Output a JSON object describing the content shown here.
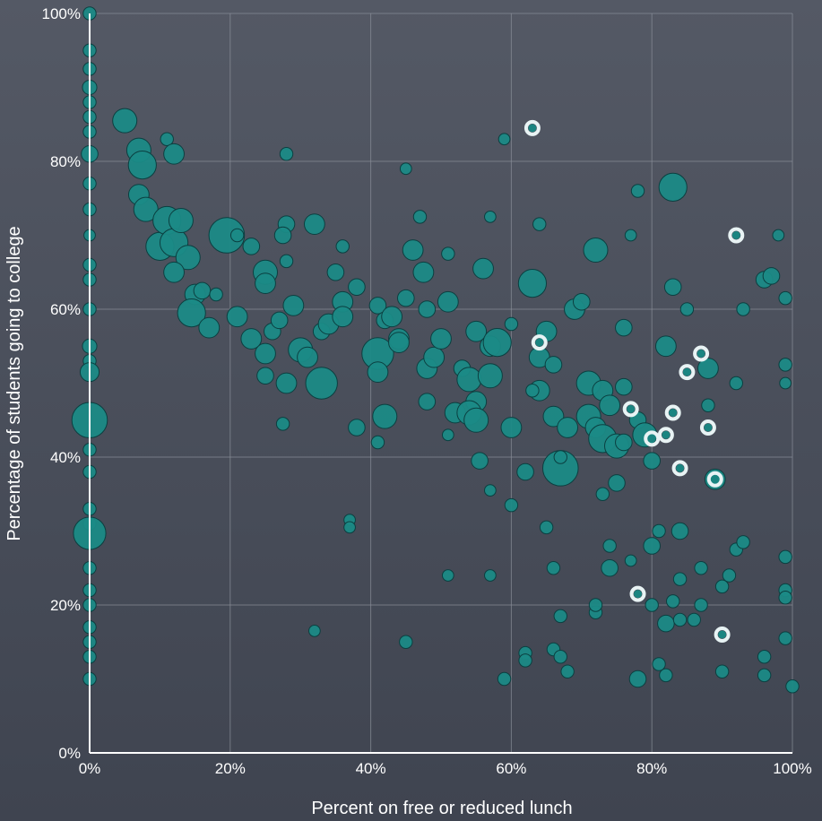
{
  "chart_data": {
    "type": "scatter",
    "title": "",
    "xlabel": "Percent on free or reduced lunch",
    "ylabel": "Percentage of students going to college",
    "xlim": [
      0,
      100
    ],
    "ylim": [
      0,
      100
    ],
    "x_ticks": [
      "0%",
      "20%",
      "40%",
      "60%",
      "80%",
      "100%"
    ],
    "y_ticks": [
      "0%",
      "20%",
      "40%",
      "60%",
      "80%",
      "100%"
    ],
    "grid": true,
    "bubble_color": "#1b8a86",
    "highlight_color": "#e8f3f4",
    "points": [
      {
        "x": 0,
        "y": 100,
        "s": 1
      },
      {
        "x": 0,
        "y": 95,
        "s": 1
      },
      {
        "x": 0,
        "y": 92.5,
        "s": 1
      },
      {
        "x": 0,
        "y": 90,
        "s": 1.2
      },
      {
        "x": 0,
        "y": 88,
        "s": 1
      },
      {
        "x": 0,
        "y": 86,
        "s": 1
      },
      {
        "x": 0,
        "y": 84,
        "s": 1
      },
      {
        "x": 0,
        "y": 81,
        "s": 1.5
      },
      {
        "x": 0,
        "y": 77,
        "s": 1
      },
      {
        "x": 0,
        "y": 73.5,
        "s": 1
      },
      {
        "x": 0,
        "y": 70,
        "s": 0.8
      },
      {
        "x": 0,
        "y": 66,
        "s": 1
      },
      {
        "x": 0,
        "y": 64,
        "s": 1
      },
      {
        "x": 0,
        "y": 60,
        "s": 1
      },
      {
        "x": 0,
        "y": 55,
        "s": 1.2
      },
      {
        "x": 0,
        "y": 53,
        "s": 1
      },
      {
        "x": 0,
        "y": 51.5,
        "s": 1.8
      },
      {
        "x": 0,
        "y": 45,
        "s": 4
      },
      {
        "x": 0,
        "y": 41,
        "s": 1
      },
      {
        "x": 0,
        "y": 38,
        "s": 1
      },
      {
        "x": 0,
        "y": 33,
        "s": 1
      },
      {
        "x": 0,
        "y": 31,
        "s": 1
      },
      {
        "x": 0,
        "y": 29.7,
        "s": 3.6
      },
      {
        "x": 0,
        "y": 25,
        "s": 1
      },
      {
        "x": 0,
        "y": 22,
        "s": 1
      },
      {
        "x": 0,
        "y": 20,
        "s": 1
      },
      {
        "x": 0,
        "y": 17,
        "s": 1
      },
      {
        "x": 0,
        "y": 15,
        "s": 1
      },
      {
        "x": 0,
        "y": 13,
        "s": 1
      },
      {
        "x": 0,
        "y": 10,
        "s": 1
      },
      {
        "x": 5,
        "y": 85.5,
        "s": 2.5
      },
      {
        "x": 7,
        "y": 81.5,
        "s": 2.5
      },
      {
        "x": 7.5,
        "y": 79.5,
        "s": 3
      },
      {
        "x": 7,
        "y": 75.5,
        "s": 2
      },
      {
        "x": 8,
        "y": 73.5,
        "s": 2.5
      },
      {
        "x": 11,
        "y": 83,
        "s": 1
      },
      {
        "x": 12,
        "y": 81,
        "s": 2
      },
      {
        "x": 10,
        "y": 68.5,
        "s": 3
      },
      {
        "x": 11,
        "y": 72,
        "s": 3
      },
      {
        "x": 12,
        "y": 69,
        "s": 3
      },
      {
        "x": 13,
        "y": 72,
        "s": 2.5
      },
      {
        "x": 14,
        "y": 67,
        "s": 2.5
      },
      {
        "x": 12,
        "y": 65,
        "s": 2
      },
      {
        "x": 15,
        "y": 62,
        "s": 2
      },
      {
        "x": 14.5,
        "y": 59.5,
        "s": 3
      },
      {
        "x": 16,
        "y": 62.5,
        "s": 1.5
      },
      {
        "x": 17,
        "y": 57.5,
        "s": 2
      },
      {
        "x": 18,
        "y": 62,
        "s": 1
      },
      {
        "x": 19.5,
        "y": 70,
        "s": 4
      },
      {
        "x": 23,
        "y": 68.5,
        "s": 1.5
      },
      {
        "x": 21,
        "y": 70,
        "s": 1
      },
      {
        "x": 21,
        "y": 59,
        "s": 2
      },
      {
        "x": 23,
        "y": 56,
        "s": 2
      },
      {
        "x": 25,
        "y": 65,
        "s": 2.5
      },
      {
        "x": 25,
        "y": 63.5,
        "s": 2
      },
      {
        "x": 26,
        "y": 57,
        "s": 1.5
      },
      {
        "x": 25,
        "y": 54,
        "s": 2
      },
      {
        "x": 27,
        "y": 58.5,
        "s": 1.5
      },
      {
        "x": 28,
        "y": 71.5,
        "s": 1.5
      },
      {
        "x": 27.5,
        "y": 70,
        "s": 1.5
      },
      {
        "x": 29,
        "y": 60.5,
        "s": 2
      },
      {
        "x": 30,
        "y": 54.5,
        "s": 2.5
      },
      {
        "x": 31,
        "y": 53.5,
        "s": 2
      },
      {
        "x": 32,
        "y": 71.5,
        "s": 2
      },
      {
        "x": 33,
        "y": 57,
        "s": 1.5
      },
      {
        "x": 34,
        "y": 58,
        "s": 2
      },
      {
        "x": 33,
        "y": 50,
        "s": 3.5
      },
      {
        "x": 35,
        "y": 65,
        "s": 1.5
      },
      {
        "x": 36,
        "y": 61,
        "s": 2
      },
      {
        "x": 36,
        "y": 59,
        "s": 2
      },
      {
        "x": 38,
        "y": 63,
        "s": 1.5
      },
      {
        "x": 36,
        "y": 68.5,
        "s": 1
      },
      {
        "x": 28,
        "y": 50,
        "s": 2
      },
      {
        "x": 27.5,
        "y": 44.5,
        "s": 1
      },
      {
        "x": 25,
        "y": 51,
        "s": 1.5
      },
      {
        "x": 28,
        "y": 81,
        "s": 1
      },
      {
        "x": 28,
        "y": 66.5,
        "s": 1
      },
      {
        "x": 32,
        "y": 16.5,
        "s": 0.8
      },
      {
        "x": 37,
        "y": 31.5,
        "s": 0.8
      },
      {
        "x": 37,
        "y": 30.5,
        "s": 0.8
      },
      {
        "x": 38,
        "y": 44,
        "s": 1.5
      },
      {
        "x": 41,
        "y": 54,
        "s": 3.5
      },
      {
        "x": 41,
        "y": 51.5,
        "s": 2
      },
      {
        "x": 42,
        "y": 45.5,
        "s": 2.5
      },
      {
        "x": 41,
        "y": 60.5,
        "s": 1.5
      },
      {
        "x": 42,
        "y": 58.5,
        "s": 1.5
      },
      {
        "x": 44,
        "y": 56,
        "s": 2
      },
      {
        "x": 44,
        "y": 55.5,
        "s": 2
      },
      {
        "x": 43,
        "y": 59,
        "s": 2
      },
      {
        "x": 45,
        "y": 61.5,
        "s": 1.5
      },
      {
        "x": 46,
        "y": 68,
        "s": 2
      },
      {
        "x": 47.5,
        "y": 65,
        "s": 2
      },
      {
        "x": 48,
        "y": 60,
        "s": 1.5
      },
      {
        "x": 48,
        "y": 52,
        "s": 2
      },
      {
        "x": 48,
        "y": 47.5,
        "s": 1.5
      },
      {
        "x": 49,
        "y": 53.5,
        "s": 2
      },
      {
        "x": 50,
        "y": 56,
        "s": 2
      },
      {
        "x": 51,
        "y": 61,
        "s": 2
      },
      {
        "x": 51,
        "y": 67.5,
        "s": 1
      },
      {
        "x": 45,
        "y": 79,
        "s": 0.8
      },
      {
        "x": 47,
        "y": 72.5,
        "s": 1
      },
      {
        "x": 41,
        "y": 42,
        "s": 1
      },
      {
        "x": 45,
        "y": 15,
        "s": 1
      },
      {
        "x": 51,
        "y": 24,
        "s": 0.8
      },
      {
        "x": 51,
        "y": 43,
        "s": 0.8
      },
      {
        "x": 52,
        "y": 46,
        "s": 2
      },
      {
        "x": 53,
        "y": 52,
        "s": 1.5
      },
      {
        "x": 54,
        "y": 50.5,
        "s": 2.5
      },
      {
        "x": 55,
        "y": 47.5,
        "s": 2
      },
      {
        "x": 54,
        "y": 46,
        "s": 2.5
      },
      {
        "x": 55,
        "y": 45,
        "s": 2.5
      },
      {
        "x": 55,
        "y": 57,
        "s": 2
      },
      {
        "x": 56,
        "y": 65.5,
        "s": 2
      },
      {
        "x": 57,
        "y": 72.5,
        "s": 0.8
      },
      {
        "x": 57,
        "y": 55,
        "s": 2
      },
      {
        "x": 58,
        "y": 55.5,
        "s": 3
      },
      {
        "x": 57,
        "y": 51,
        "s": 2.5
      },
      {
        "x": 55.5,
        "y": 39.5,
        "s": 1.5
      },
      {
        "x": 57,
        "y": 35.5,
        "s": 0.8
      },
      {
        "x": 57,
        "y": 24,
        "s": 0.8
      },
      {
        "x": 59,
        "y": 83,
        "s": 0.8
      },
      {
        "x": 60,
        "y": 44,
        "s": 2
      },
      {
        "x": 59,
        "y": 10,
        "s": 1
      },
      {
        "x": 60,
        "y": 33.5,
        "s": 1
      },
      {
        "x": 62,
        "y": 38,
        "s": 1.5
      },
      {
        "x": 62,
        "y": 13.5,
        "s": 1
      },
      {
        "x": 62,
        "y": 12.5,
        "s": 1
      },
      {
        "x": 63,
        "y": 63.5,
        "s": 3
      },
      {
        "x": 64,
        "y": 71.5,
        "s": 1
      },
      {
        "x": 64,
        "y": 53.5,
        "s": 2
      },
      {
        "x": 64,
        "y": 49,
        "s": 2
      },
      {
        "x": 65,
        "y": 57,
        "s": 2
      },
      {
        "x": 66,
        "y": 52.5,
        "s": 1.5
      },
      {
        "x": 66,
        "y": 45.5,
        "s": 2
      },
      {
        "x": 67,
        "y": 38.5,
        "s": 4
      },
      {
        "x": 66,
        "y": 14,
        "s": 1
      },
      {
        "x": 67,
        "y": 13,
        "s": 1
      },
      {
        "x": 68,
        "y": 11,
        "s": 1
      },
      {
        "x": 67,
        "y": 18.5,
        "s": 1
      },
      {
        "x": 68,
        "y": 44,
        "s": 2
      },
      {
        "x": 69,
        "y": 60,
        "s": 2
      },
      {
        "x": 70,
        "y": 61,
        "s": 1.5
      },
      {
        "x": 71,
        "y": 50,
        "s": 2.5
      },
      {
        "x": 71,
        "y": 45.5,
        "s": 2.5
      },
      {
        "x": 72,
        "y": 68,
        "s": 2.5
      },
      {
        "x": 72,
        "y": 44,
        "s": 2
      },
      {
        "x": 73,
        "y": 49,
        "s": 2
      },
      {
        "x": 73,
        "y": 42.5,
        "s": 3
      },
      {
        "x": 74,
        "y": 47,
        "s": 2
      },
      {
        "x": 74,
        "y": 25,
        "s": 1.5
      },
      {
        "x": 74,
        "y": 28,
        "s": 1
      },
      {
        "x": 75,
        "y": 36.5,
        "s": 1.5
      },
      {
        "x": 75,
        "y": 41.5,
        "s": 2.5
      },
      {
        "x": 76,
        "y": 57.5,
        "s": 1.5
      },
      {
        "x": 76,
        "y": 49.5,
        "s": 1.5
      },
      {
        "x": 77,
        "y": 70,
        "s": 0.8
      },
      {
        "x": 78,
        "y": 76,
        "s": 1
      },
      {
        "x": 78,
        "y": 45,
        "s": 1.5
      },
      {
        "x": 79,
        "y": 43,
        "s": 2.5
      },
      {
        "x": 80,
        "y": 39.5,
        "s": 1.5
      },
      {
        "x": 80,
        "y": 28,
        "s": 1.5
      },
      {
        "x": 81,
        "y": 30,
        "s": 1
      },
      {
        "x": 82,
        "y": 55,
        "s": 2
      },
      {
        "x": 82,
        "y": 17.5,
        "s": 1.5
      },
      {
        "x": 82,
        "y": 10.5,
        "s": 1
      },
      {
        "x": 83,
        "y": 76.5,
        "s": 3
      },
      {
        "x": 83,
        "y": 63,
        "s": 1.5
      },
      {
        "x": 83,
        "y": 20.5,
        "s": 1
      },
      {
        "x": 84,
        "y": 30,
        "s": 1.5
      },
      {
        "x": 84,
        "y": 18,
        "s": 1
      },
      {
        "x": 84,
        "y": 23.5,
        "s": 1
      },
      {
        "x": 85,
        "y": 60,
        "s": 1
      },
      {
        "x": 86,
        "y": 18,
        "s": 1
      },
      {
        "x": 87,
        "y": 25,
        "s": 1
      },
      {
        "x": 87,
        "y": 20,
        "s": 1
      },
      {
        "x": 88,
        "y": 52,
        "s": 2
      },
      {
        "x": 88,
        "y": 47,
        "s": 1
      },
      {
        "x": 89,
        "y": 37,
        "s": 2
      },
      {
        "x": 90,
        "y": 22.5,
        "s": 1
      },
      {
        "x": 90,
        "y": 11,
        "s": 1
      },
      {
        "x": 91,
        "y": 24,
        "s": 1
      },
      {
        "x": 92,
        "y": 27.5,
        "s": 1
      },
      {
        "x": 92,
        "y": 50,
        "s": 1
      },
      {
        "x": 93,
        "y": 28.5,
        "s": 1
      },
      {
        "x": 93,
        "y": 60,
        "s": 1
      },
      {
        "x": 96,
        "y": 64,
        "s": 1.5
      },
      {
        "x": 96,
        "y": 13,
        "s": 1
      },
      {
        "x": 96,
        "y": 10.5,
        "s": 1
      },
      {
        "x": 97,
        "y": 64.5,
        "s": 1.5
      },
      {
        "x": 98,
        "y": 70,
        "s": 0.8
      },
      {
        "x": 99,
        "y": 61.5,
        "s": 1
      },
      {
        "x": 99,
        "y": 52.5,
        "s": 1
      },
      {
        "x": 99,
        "y": 50,
        "s": 0.8
      },
      {
        "x": 99,
        "y": 26.5,
        "s": 1
      },
      {
        "x": 99,
        "y": 22,
        "s": 1
      },
      {
        "x": 99,
        "y": 21,
        "s": 1
      },
      {
        "x": 99,
        "y": 15.5,
        "s": 1
      },
      {
        "x": 100,
        "y": 9,
        "s": 1
      },
      {
        "x": 72,
        "y": 19,
        "s": 1
      },
      {
        "x": 72,
        "y": 20,
        "s": 1
      },
      {
        "x": 73,
        "y": 35,
        "s": 1
      },
      {
        "x": 77,
        "y": 26,
        "s": 0.8
      },
      {
        "x": 81,
        "y": 12,
        "s": 1
      },
      {
        "x": 63,
        "y": 49,
        "s": 1
      },
      {
        "x": 60,
        "y": 58,
        "s": 1
      },
      {
        "x": 65,
        "y": 30.5,
        "s": 1
      },
      {
        "x": 66,
        "y": 25,
        "s": 1
      },
      {
        "x": 67,
        "y": 40,
        "s": 1
      },
      {
        "x": 78,
        "y": 10,
        "s": 1.5
      },
      {
        "x": 80,
        "y": 20,
        "s": 1
      },
      {
        "x": 76,
        "y": 42,
        "s": 1.5
      }
    ],
    "highlighted": [
      {
        "x": 63,
        "y": 84.5
      },
      {
        "x": 92,
        "y": 70
      },
      {
        "x": 64,
        "y": 55.5
      },
      {
        "x": 87,
        "y": 54
      },
      {
        "x": 85,
        "y": 51.5
      },
      {
        "x": 77,
        "y": 46.5
      },
      {
        "x": 83,
        "y": 46
      },
      {
        "x": 88,
        "y": 44
      },
      {
        "x": 80,
        "y": 42.5
      },
      {
        "x": 82,
        "y": 43
      },
      {
        "x": 84,
        "y": 38.5
      },
      {
        "x": 89,
        "y": 37
      },
      {
        "x": 78,
        "y": 21.5
      },
      {
        "x": 90,
        "y": 16
      }
    ]
  }
}
